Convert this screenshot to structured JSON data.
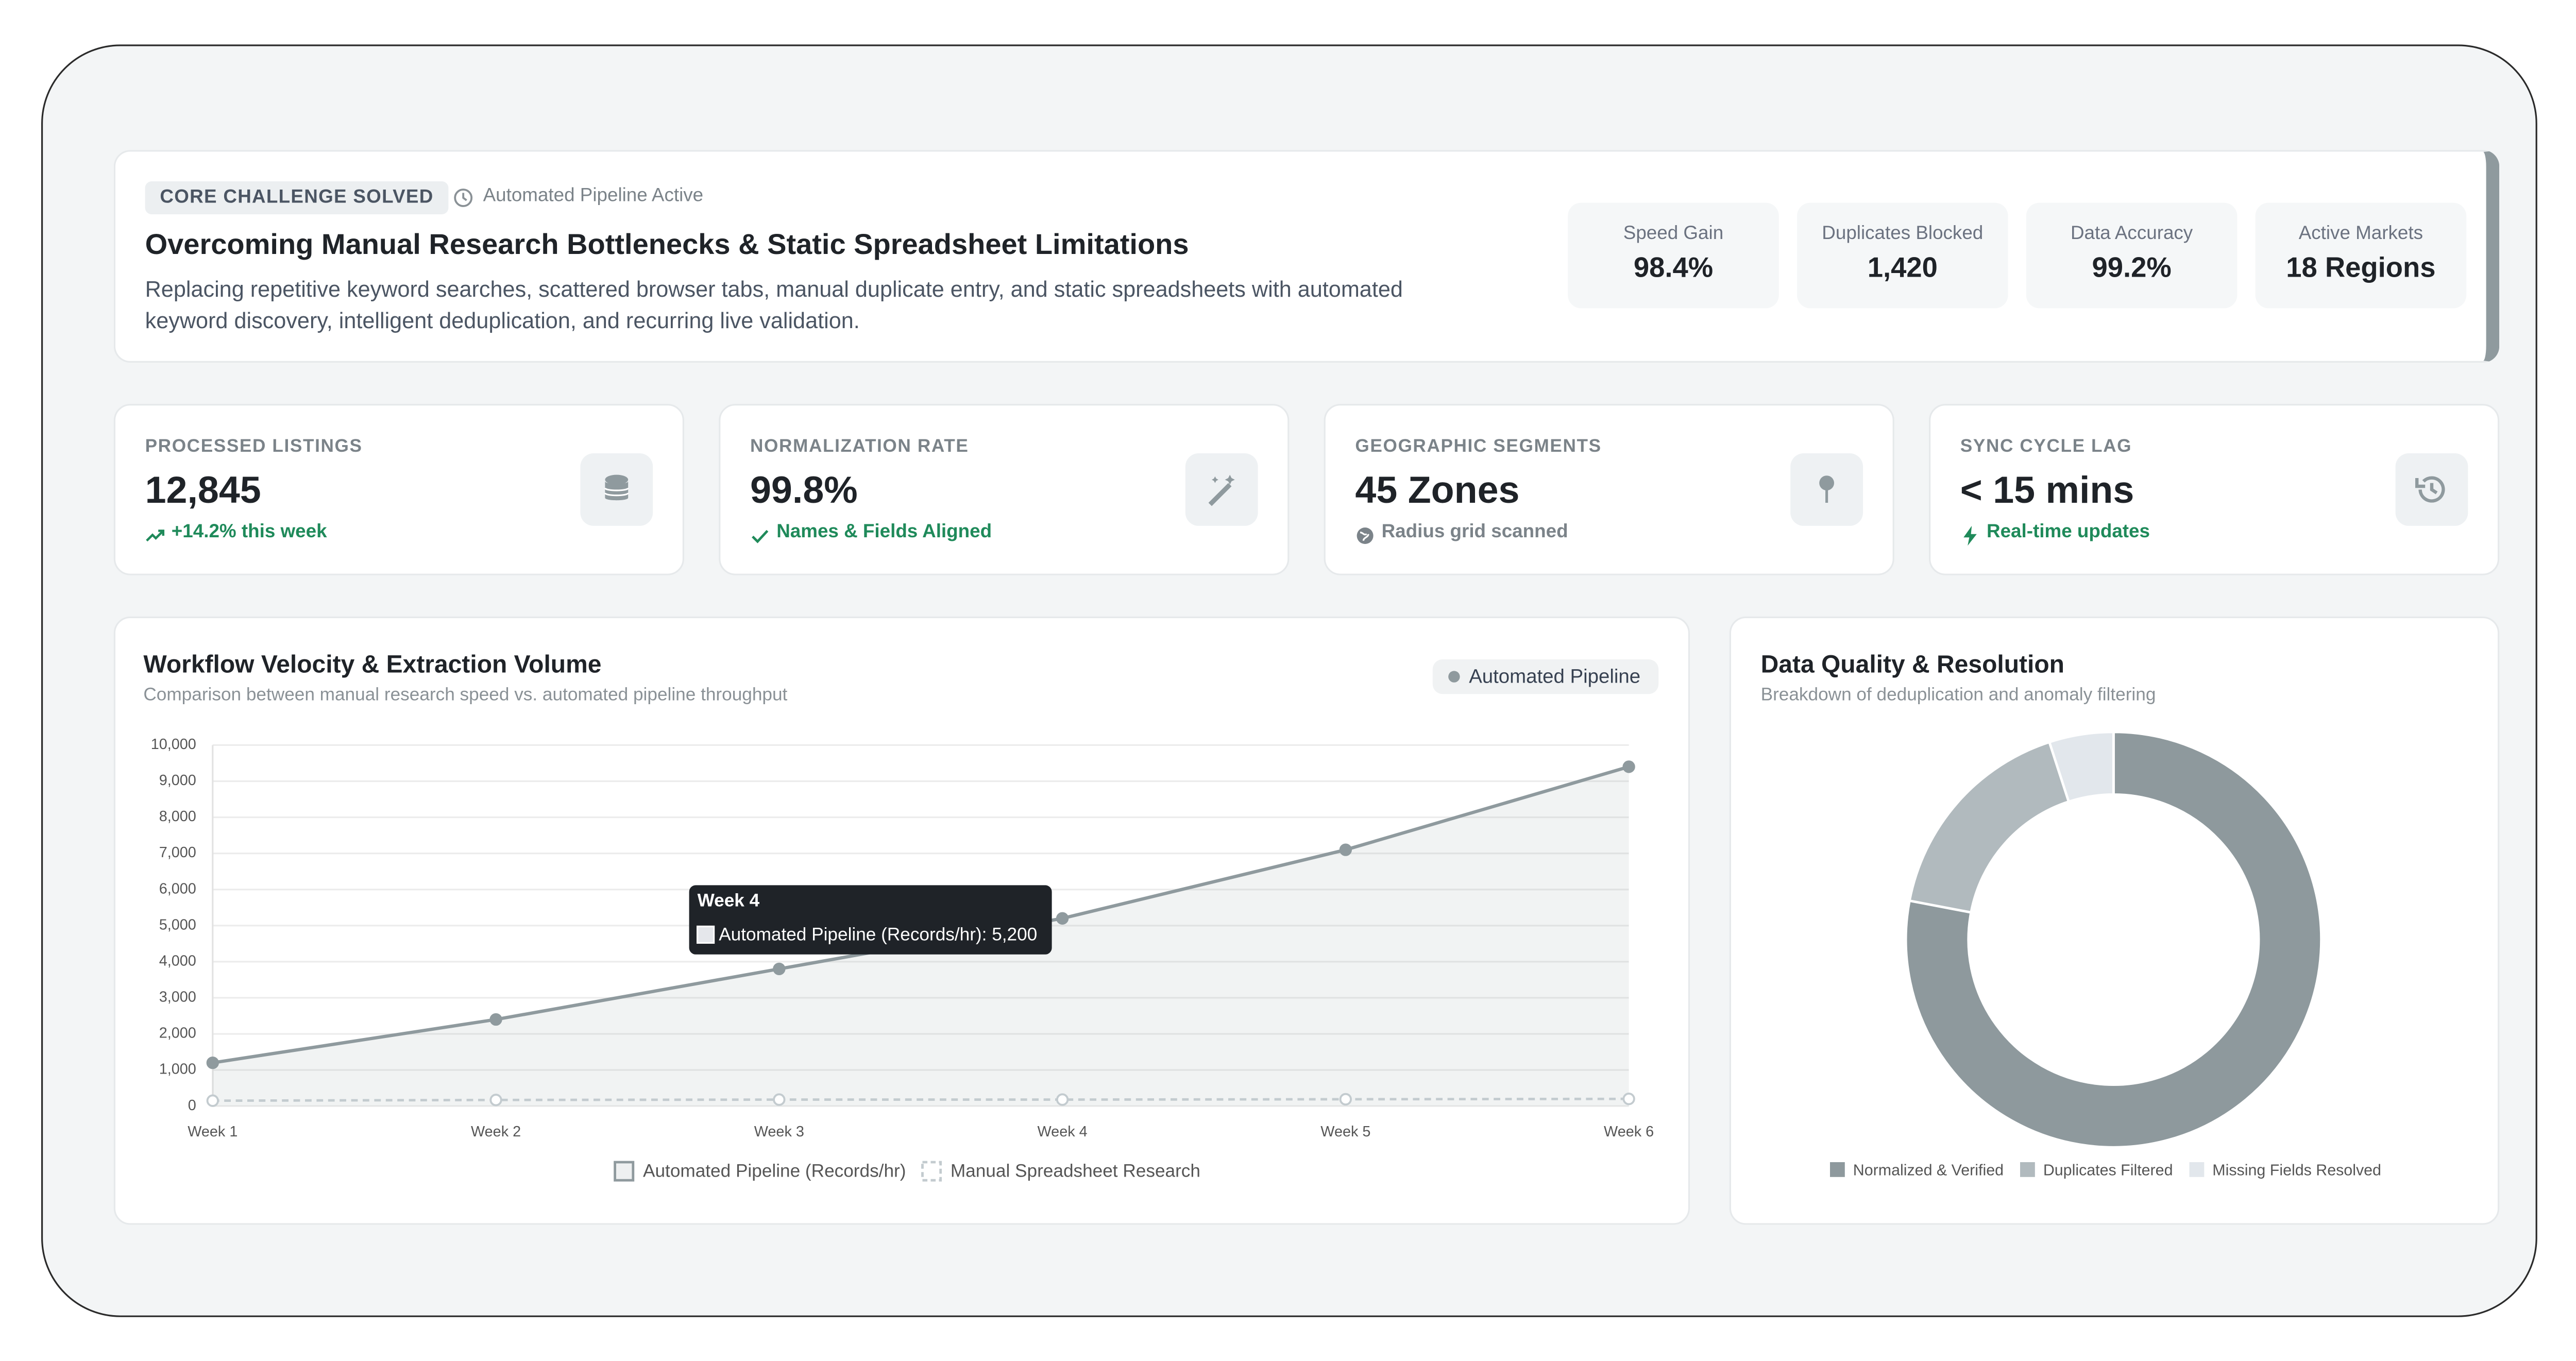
{
  "header": {
    "badge": "CORE CHALLENGE SOLVED",
    "status": "Automated Pipeline Active",
    "title": "Overcoming Manual Research Bottlenecks & Static Spreadsheet Limitations",
    "description": "Replacing repetitive keyword searches, scattered browser tabs, manual duplicate entry, and static spreadsheets with automated keyword discovery, intelligent deduplication, and recurring live validation.",
    "stats": [
      {
        "label": "Speed Gain",
        "value": "98.4%"
      },
      {
        "label": "Duplicates Blocked",
        "value": "1,420"
      },
      {
        "label": "Data Accuracy",
        "value": "99.2%"
      },
      {
        "label": "Active Markets",
        "value": "18 Regions"
      }
    ]
  },
  "kpis": [
    {
      "label": "PROCESSED LISTINGS",
      "value": "12,845",
      "note": "+14.2% this week"
    },
    {
      "label": "NORMALIZATION RATE",
      "value": "99.8%",
      "note": "Names & Fields Aligned"
    },
    {
      "label": "GEOGRAPHIC SEGMENTS",
      "value": "45 Zones",
      "note": "Radius grid scanned"
    },
    {
      "label": "SYNC CYCLE LAG",
      "value": "< 15 mins",
      "note": "Real-time updates"
    }
  ],
  "chart_data": [
    {
      "type": "line",
      "title": "Workflow Velocity & Extraction Volume",
      "subtitle": "Comparison between manual research speed vs. automated pipeline throughput",
      "badge": "Automated Pipeline",
      "categories": [
        "Week 1",
        "Week 2",
        "Week 3",
        "Week 4",
        "Week 5",
        "Week 6"
      ],
      "series": [
        {
          "name": "Automated Pipeline (Records/hr)",
          "color": "#8f9a9e",
          "values": [
            1200,
            2400,
            3800,
            5200,
            7100,
            9400
          ]
        },
        {
          "name": "Manual Spreadsheet Research",
          "color": "#c3cbcf",
          "dashed": true,
          "values": [
            150,
            170,
            180,
            180,
            190,
            200
          ]
        }
      ],
      "ylim": [
        0,
        10000
      ],
      "yticks": [
        0,
        {
          "value": 1000,
          "label": "1,000"
        },
        {
          "value": 2000,
          "label": "2,000"
        },
        {
          "value": 3000,
          "label": "3,000"
        },
        {
          "value": 4000,
          "label": "4,000"
        },
        {
          "value": 5000,
          "label": "5,000"
        },
        {
          "value": 6000,
          "label": "6,000"
        },
        {
          "value": 7000,
          "label": "7,000"
        },
        {
          "value": 8000,
          "label": "8,000"
        },
        {
          "value": 9000,
          "label": "9,000"
        },
        {
          "value": 10000,
          "label": "10,000"
        }
      ],
      "grid": true,
      "tooltip": {
        "title": "Week 4",
        "label": "Automated Pipeline (Records/hr): 5,200"
      }
    },
    {
      "type": "doughnut",
      "title": "Data Quality & Resolution",
      "subtitle": "Breakdown of deduplication and anomaly filtering",
      "categories": [
        "Normalized & Verified",
        "Duplicates Filtered",
        "Missing Fields Resolved"
      ],
      "values": [
        78,
        17,
        5
      ],
      "colors": [
        "#8e999d",
        "#b1babe",
        "#e2e7ec"
      ]
    }
  ]
}
